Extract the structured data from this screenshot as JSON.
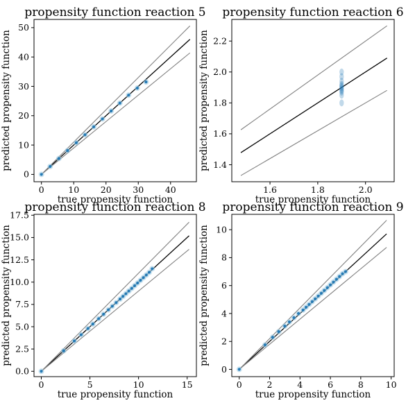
{
  "chart_data": [
    {
      "type": "scatter",
      "title": "propensity function reaction 5",
      "xlabel": "true propensity function",
      "ylabel": "predicted propensity function",
      "xlim": [
        -2.3,
        48
      ],
      "ylim": [
        -2.5,
        52.8
      ],
      "xticks": [
        "0",
        "10",
        "20",
        "30",
        "40"
      ],
      "yticks": [
        "0",
        "10",
        "20",
        "30",
        "40",
        "50"
      ],
      "xtick_values": [
        0,
        10,
        20,
        30,
        40
      ],
      "ytick_values": [
        0,
        10,
        20,
        30,
        40,
        50
      ],
      "grid": false,
      "reference_lines": [
        {
          "name": "identity",
          "color": "#000000",
          "x": [
            0,
            46
          ],
          "y": [
            0,
            46
          ]
        },
        {
          "name": "upper bound",
          "color": "#808080",
          "x": [
            0,
            46
          ],
          "y": [
            0,
            50.6
          ]
        },
        {
          "name": "lower bound",
          "color": "#808080",
          "x": [
            0,
            46
          ],
          "y": [
            0,
            41.4
          ]
        }
      ],
      "points": {
        "color": "#1f77b4",
        "x": [
          0,
          2.7,
          5.4,
          8.1,
          10.8,
          13.5,
          16.2,
          18.9,
          21.6,
          24.3,
          27,
          29.7,
          32.4
        ],
        "y": [
          0,
          2.7,
          5.4,
          8.1,
          10.8,
          13.5,
          16.2,
          18.9,
          21.6,
          24.3,
          27,
          29.4,
          31.5
        ]
      }
    },
    {
      "type": "scatter",
      "title": "propensity function reaction 6",
      "xlabel": "true propensity function",
      "ylabel": "predicted propensity function",
      "xlim": [
        1.44,
        2.12
      ],
      "ylim": [
        1.29,
        2.34
      ],
      "xticks": [
        "1.6",
        "1.8",
        "2.0"
      ],
      "yticks": [
        "1.4",
        "1.6",
        "1.8",
        "2.0",
        "2.2"
      ],
      "xtick_values": [
        1.6,
        1.8,
        2.0
      ],
      "ytick_values": [
        1.4,
        1.6,
        1.8,
        2.0,
        2.2
      ],
      "grid": false,
      "reference_lines": [
        {
          "name": "identity",
          "color": "#000000",
          "x": [
            1.478,
            2.09
          ],
          "y": [
            1.478,
            2.09
          ]
        },
        {
          "name": "upper bound",
          "color": "#808080",
          "x": [
            1.478,
            2.09
          ],
          "y": [
            1.626,
            2.299
          ]
        },
        {
          "name": "lower bound",
          "color": "#808080",
          "x": [
            1.478,
            2.09
          ],
          "y": [
            1.33,
            1.881
          ]
        }
      ],
      "points": {
        "color": "#1f77b4",
        "x": [
          1.9,
          1.9,
          1.9,
          1.9,
          1.9,
          1.9,
          1.9,
          1.9,
          1.9,
          1.9,
          1.9
        ],
        "y": [
          1.85,
          1.87,
          1.88,
          1.89,
          1.9,
          1.91,
          1.92,
          1.94,
          1.97,
          2.0,
          1.8
        ]
      }
    },
    {
      "type": "scatter",
      "title": "propensity function reaction 8",
      "xlabel": "true propensity function",
      "ylabel": "predicted propensity function",
      "xlim": [
        -0.75,
        15.95
      ],
      "ylim": [
        -0.6,
        17.6
      ],
      "xticks": [
        "0",
        "5",
        "10",
        "15"
      ],
      "yticks": [
        "0.0",
        "2.5",
        "5.0",
        "7.5",
        "10.0",
        "12.5",
        "15.0",
        "17.5"
      ],
      "xtick_values": [
        0,
        5,
        10,
        15
      ],
      "ytick_values": [
        0,
        2.5,
        5,
        7.5,
        10,
        12.5,
        15,
        17.5
      ],
      "grid": false,
      "reference_lines": [
        {
          "name": "identity",
          "color": "#000000",
          "x": [
            0,
            15.2
          ],
          "y": [
            0,
            15.2
          ]
        },
        {
          "name": "upper bound",
          "color": "#808080",
          "x": [
            0,
            15.2
          ],
          "y": [
            0,
            16.72
          ]
        },
        {
          "name": "lower bound",
          "color": "#808080",
          "x": [
            0,
            15.2
          ],
          "y": [
            0,
            13.68
          ]
        }
      ],
      "points": {
        "color": "#1f77b4",
        "x": [
          0,
          2.3,
          3.4,
          4.1,
          4.8,
          5.3,
          5.9,
          6.4,
          6.9,
          7.3,
          7.7,
          8.1,
          8.4,
          8.7,
          9.0,
          9.3,
          9.6,
          9.9,
          10.2,
          10.5,
          10.8,
          11.1,
          11.4
        ],
        "y": [
          0,
          2.3,
          3.4,
          4.1,
          4.8,
          5.3,
          5.9,
          6.4,
          6.9,
          7.3,
          7.7,
          8.1,
          8.4,
          8.7,
          9.0,
          9.3,
          9.6,
          9.9,
          10.2,
          10.5,
          10.8,
          11.1,
          11.5
        ]
      }
    },
    {
      "type": "scatter",
      "title": "propensity function reaction 9",
      "xlabel": "true propensity function",
      "ylabel": "predicted propensity function",
      "xlim": [
        -0.49,
        10.2
      ],
      "ylim": [
        -0.52,
        11.1
      ],
      "xticks": [
        "0",
        "2",
        "4",
        "6",
        "8",
        "10"
      ],
      "yticks": [
        "0",
        "2",
        "4",
        "6",
        "8",
        "10"
      ],
      "xtick_values": [
        0,
        2,
        4,
        6,
        8,
        10
      ],
      "ytick_values": [
        0,
        2,
        4,
        6,
        8,
        10
      ],
      "grid": false,
      "reference_lines": [
        {
          "name": "identity",
          "color": "#000000",
          "x": [
            0,
            9.7
          ],
          "y": [
            0,
            9.7
          ]
        },
        {
          "name": "upper bound",
          "color": "#808080",
          "x": [
            0,
            9.7
          ],
          "y": [
            0,
            10.67
          ]
        },
        {
          "name": "lower bound",
          "color": "#808080",
          "x": [
            0,
            9.7
          ],
          "y": [
            0,
            8.73
          ]
        }
      ],
      "points": {
        "color": "#1f77b4",
        "x": [
          0,
          1.7,
          2.2,
          2.6,
          3.0,
          3.3,
          3.6,
          3.9,
          4.2,
          4.4,
          4.6,
          4.8,
          5.0,
          5.2,
          5.4,
          5.6,
          5.8,
          6.0,
          6.2,
          6.4,
          6.6,
          6.8,
          7.0
        ],
        "y": [
          0,
          1.75,
          2.3,
          2.7,
          3.1,
          3.4,
          3.7,
          4.0,
          4.25,
          4.45,
          4.65,
          4.85,
          5.05,
          5.25,
          5.45,
          5.65,
          5.85,
          6.05,
          6.25,
          6.45,
          6.65,
          6.85,
          7.0
        ]
      }
    }
  ]
}
